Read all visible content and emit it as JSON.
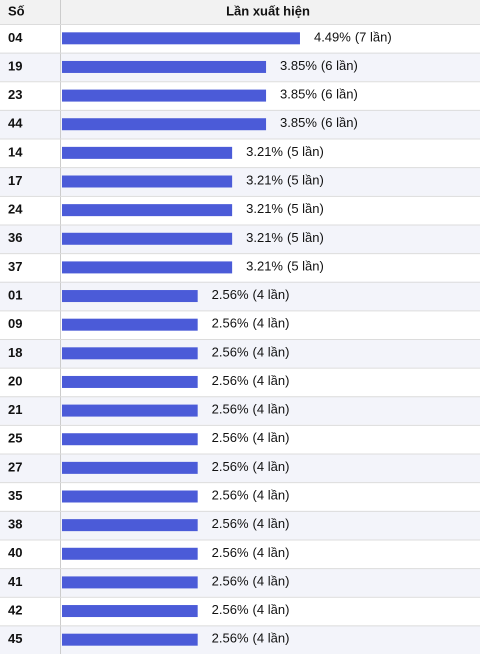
{
  "chart_data": {
    "type": "bar",
    "column_headers": [
      "Số",
      "Lần xuất hiện"
    ],
    "categories": [
      "04",
      "19",
      "23",
      "44",
      "14",
      "17",
      "24",
      "36",
      "37",
      "01",
      "09",
      "18",
      "20",
      "21",
      "25",
      "27",
      "35",
      "38",
      "40",
      "41",
      "42",
      "45"
    ],
    "values": [
      4.49,
      3.85,
      3.85,
      3.85,
      3.21,
      3.21,
      3.21,
      3.21,
      3.21,
      2.56,
      2.56,
      2.56,
      2.56,
      2.56,
      2.56,
      2.56,
      2.56,
      2.56,
      2.56,
      2.56,
      2.56,
      2.56
    ],
    "value_labels": [
      "4.49%",
      "3.85%",
      "3.85%",
      "3.85%",
      "3.21%",
      "3.21%",
      "3.21%",
      "3.21%",
      "3.21%",
      "2.56%",
      "2.56%",
      "2.56%",
      "2.56%",
      "2.56%",
      "2.56%",
      "2.56%",
      "2.56%",
      "2.56%",
      "2.56%",
      "2.56%",
      "2.56%",
      "2.56%"
    ],
    "counts": [
      7,
      6,
      6,
      6,
      5,
      5,
      5,
      5,
      5,
      4,
      4,
      4,
      4,
      4,
      4,
      4,
      4,
      4,
      4,
      4,
      4,
      4
    ],
    "count_labels": [
      "(7 lần)",
      "(6 lần)",
      "(6 lần)",
      "(6 lần)",
      "(5 lần)",
      "(5 lần)",
      "(5 lần)",
      "(5 lần)",
      "(5 lần)",
      "(4 lần)",
      "(4 lần)",
      "(4 lần)",
      "(4 lần)",
      "(4 lần)",
      "(4 lần)",
      "(4 lần)",
      "(4 lần)",
      "(4 lần)",
      "(4 lần)",
      "(4 lần)",
      "(4 lần)",
      "(4 lần)"
    ],
    "color": "#4b5bd8"
  }
}
